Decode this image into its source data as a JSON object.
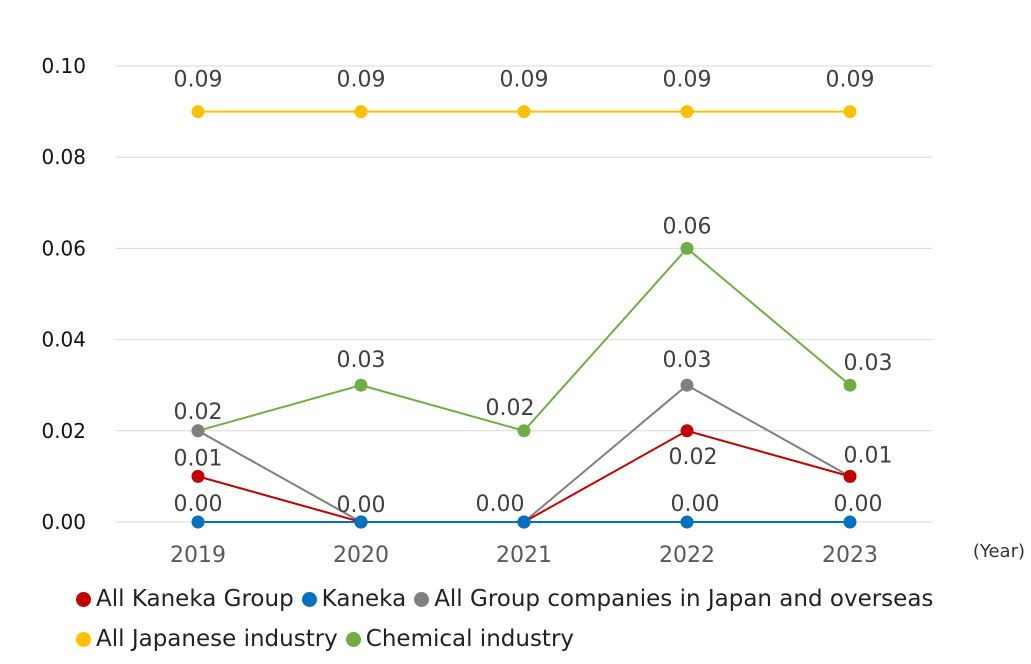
{
  "chart_data": {
    "type": "line",
    "categories": [
      "2019",
      "2020",
      "2021",
      "2022",
      "2023"
    ],
    "x_unit": "(Year)",
    "ylim": [
      0,
      0.1
    ],
    "yticks": [
      "0.00",
      "0.02",
      "0.04",
      "0.06",
      "0.08",
      "0.10"
    ],
    "grid": true,
    "legend_position": "bottom",
    "series": [
      {
        "name": "All Japanese industry",
        "color": "#FFC000",
        "values": [
          0.09,
          0.09,
          0.09,
          0.09,
          0.09
        ],
        "labels": [
          "0.09",
          "0.09",
          "0.09",
          "0.09",
          "0.09"
        ]
      },
      {
        "name": "Chemical industry",
        "color": "#70AD47",
        "values": [
          0.02,
          0.03,
          0.02,
          0.06,
          0.03
        ],
        "labels": [
          "0.02",
          "0.03",
          "0.02",
          "0.06",
          "0.03"
        ]
      },
      {
        "name": "All Group companies in Japan and overseas",
        "color": "#7F7F7F",
        "values": [
          0.02,
          0.0,
          0.0,
          0.03,
          0.01
        ],
        "labels": [
          "",
          "",
          "",
          "0.03",
          "0.01"
        ]
      },
      {
        "name": "All Kaneka Group",
        "color": "#C00000",
        "values": [
          0.01,
          0.0,
          0.0,
          0.02,
          0.01
        ],
        "labels": [
          "0.01",
          "0.00",
          "",
          "0.02",
          ""
        ]
      },
      {
        "name": "Kaneka",
        "color": "#0070C0",
        "values": [
          0.0,
          0.0,
          0.0,
          0.0,
          0.0
        ],
        "labels": [
          "0.00",
          "",
          "0.00",
          "0.00",
          "0.00"
        ]
      }
    ]
  },
  "legend": {
    "row1": [
      {
        "name": "All Kaneka Group",
        "color": "#C00000"
      },
      {
        "name": "Kaneka",
        "color": "#0070C0"
      },
      {
        "name": "All Group companies in Japan and overseas",
        "color": "#7F7F7F"
      }
    ],
    "row2": [
      {
        "name": "All Japanese industry",
        "color": "#FFC000"
      },
      {
        "name": "Chemical industry",
        "color": "#70AD47"
      }
    ]
  }
}
